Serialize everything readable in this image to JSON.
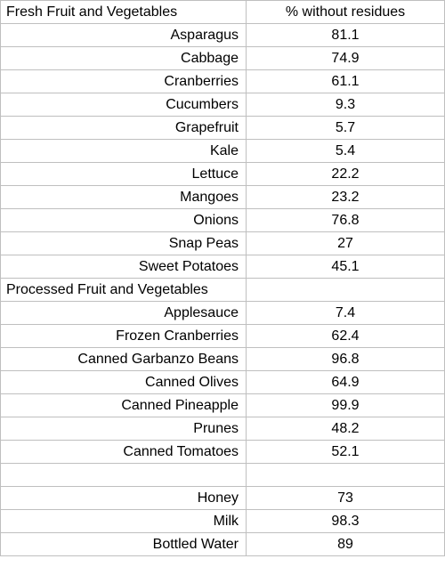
{
  "header": {
    "col1": "Fresh Fruit and Vegetables",
    "col2": "% without residues"
  },
  "fresh": [
    {
      "name": "Asparagus",
      "value": "81.1"
    },
    {
      "name": "Cabbage",
      "value": "74.9"
    },
    {
      "name": "Cranberries",
      "value": "61.1"
    },
    {
      "name": "Cucumbers",
      "value": "9.3"
    },
    {
      "name": "Grapefruit",
      "value": "5.7"
    },
    {
      "name": "Kale",
      "value": "5.4"
    },
    {
      "name": "Lettuce",
      "value": "22.2"
    },
    {
      "name": "Mangoes",
      "value": "23.2"
    },
    {
      "name": "Onions",
      "value": "76.8"
    },
    {
      "name": "Snap Peas",
      "value": "27"
    },
    {
      "name": "Sweet Potatoes",
      "value": "45.1"
    }
  ],
  "processed_header": "Processed Fruit and Vegetables",
  "processed": [
    {
      "name": "Applesauce",
      "value": "7.4"
    },
    {
      "name": "Frozen Cranberries",
      "value": "62.4"
    },
    {
      "name": "Canned Garbanzo Beans",
      "value": "96.8"
    },
    {
      "name": "Canned Olives",
      "value": "64.9"
    },
    {
      "name": "Canned Pineapple",
      "value": "99.9"
    },
    {
      "name": "Prunes",
      "value": "48.2"
    },
    {
      "name": "Canned Tomatoes",
      "value": "52.1"
    }
  ],
  "other": [
    {
      "name": "Honey",
      "value": "73"
    },
    {
      "name": "Milk",
      "value": "98.3"
    },
    {
      "name": "Bottled Water",
      "value": "89"
    }
  ]
}
